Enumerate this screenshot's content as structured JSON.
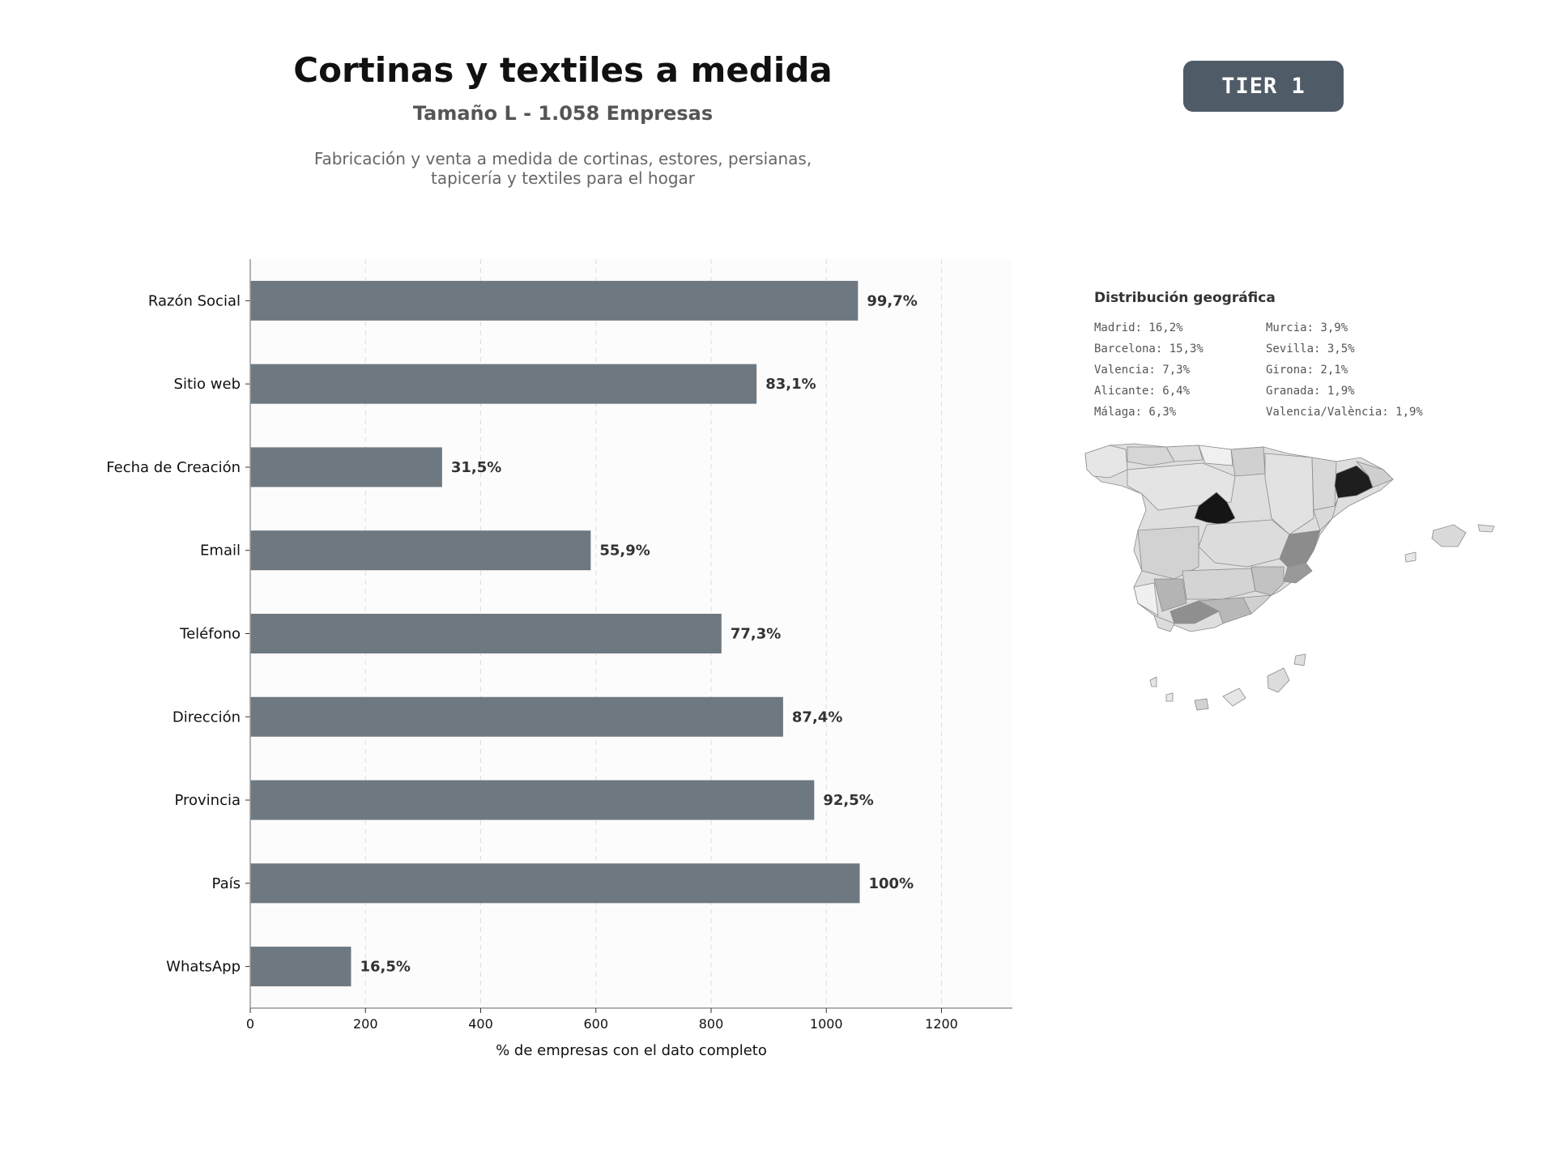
{
  "header": {
    "title": "Cortinas y textiles a medida",
    "subtitle": "Tamaño L - 1.058 Empresas",
    "description_lines": [
      "Fabricación y venta a medida de cortinas, estores, persianas,",
      "tapicería y textiles para el hogar"
    ],
    "tier_badge": "TIER 1"
  },
  "chart_data": {
    "type": "bar",
    "orientation": "horizontal",
    "categories": [
      "Razón Social",
      "Sitio web",
      "Fecha de Creación",
      "Email",
      "Teléfono",
      "Dirección",
      "Provincia",
      "País",
      "WhatsApp"
    ],
    "values": [
      1055,
      879,
      333,
      591,
      818,
      925,
      979,
      1058,
      175
    ],
    "value_labels": [
      "99,7%",
      "83,1%",
      "31,5%",
      "55,9%",
      "77,3%",
      "87,4%",
      "92,5%",
      "100%",
      "16,5%"
    ],
    "xlabel": "% de empresas con el dato completo",
    "xticks": [
      0,
      200,
      400,
      600,
      800,
      1000,
      1200
    ],
    "xlim": [
      0,
      1323
    ],
    "grid": "vertical dashed",
    "bar_color": "#6e7880"
  },
  "geo": {
    "title": "Distribución geográfica",
    "col1": [
      "Madrid: 16,2%",
      "Barcelona: 15,3%",
      "Valencia: 7,3%",
      "Alicante: 6,4%",
      "Málaga: 6,3%"
    ],
    "col2": [
      "Murcia: 3,9%",
      "Sevilla: 3,5%",
      "Girona: 2,1%",
      "Granada: 1,9%",
      "Valencia/València: 1,9%"
    ]
  }
}
